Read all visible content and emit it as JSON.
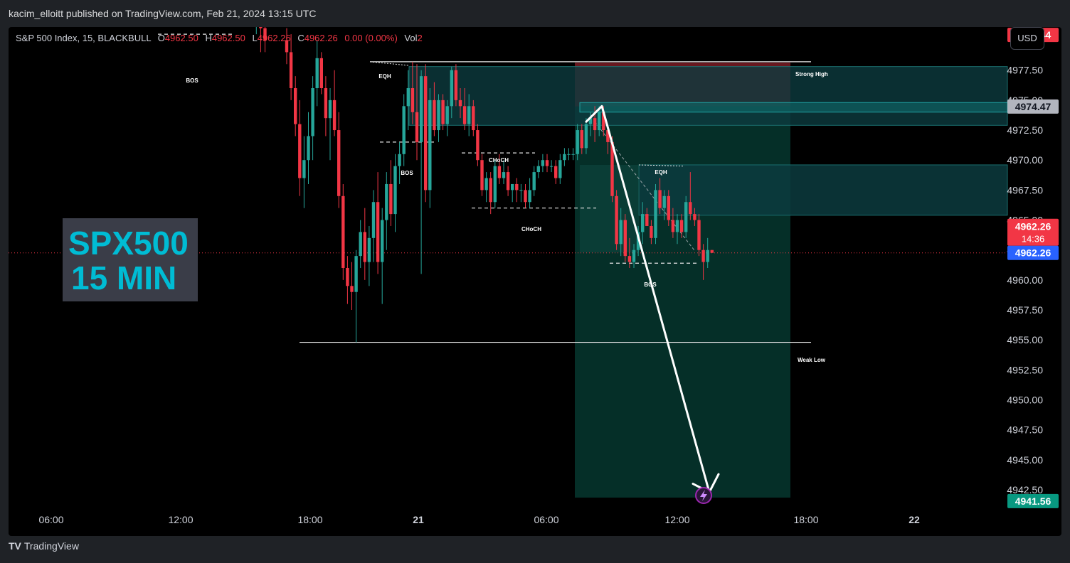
{
  "header": {
    "published": "kacim_elloitt published on TradingView.com, Feb 21, 2024 13:15 UTC"
  },
  "legend": {
    "symbol": "S&P 500 Index, 15, BLACKBULL",
    "o_label": "O",
    "o": "4962.50",
    "h_label": "H",
    "h": "4962.50",
    "l_label": "L",
    "l": "4962.26",
    "c_label": "C",
    "c": "4962.26",
    "change": "0.00 (0.00%)",
    "vol_label": "Vol",
    "vol": "2"
  },
  "currency_button": "USD",
  "watermark": {
    "line1": "SPX500",
    "line2": "15 MIN"
  },
  "footer": {
    "brand": "TradingView",
    "logo": "TV"
  },
  "colors": {
    "up": "#26a69a",
    "down": "#f23645",
    "stop_zone": "#7a1c25",
    "target_zone": "#06342c",
    "supply_zone": "#0c3b3e"
  },
  "chart_data": {
    "type": "candlestick",
    "title": "",
    "ylim": [
      4940.9,
      4981.1
    ],
    "y_ticks": [
      "4977.50",
      "4975.00",
      "4972.50",
      "4970.00",
      "4967.50",
      "4965.00",
      "4962.50",
      "4960.00",
      "4957.50",
      "4955.00",
      "4952.50",
      "4950.00",
      "4947.50",
      "4945.00",
      "4942.50"
    ],
    "x_ticks": [
      "06:00",
      "12:00",
      "18:00",
      "21",
      "06:00",
      "12:00",
      "18:00",
      "22"
    ],
    "price_labels": {
      "stop": "4980.44",
      "entry": "4974.47",
      "last": "4962.26",
      "countdown": "14:36",
      "bid": "4962.26",
      "target": "4941.56"
    },
    "levels": [
      {
        "label": "Strong High",
        "price": 4978.2
      },
      {
        "label": "Weak Low",
        "price": 4954.8
      }
    ],
    "annotations": [
      "BOS",
      "EQH",
      "BOS",
      "CHoCH",
      "CHoCH",
      "EQH",
      "BOS"
    ],
    "projection": {
      "from": 4974.5,
      "to": 4941.6
    },
    "candles": [
      {
        "t": -7,
        "o": 4983.0,
        "h": 4986.0,
        "l": 4980.5,
        "c": 4983.5
      },
      {
        "t": -6,
        "o": 4983.5,
        "h": 4985.0,
        "l": 4979.0,
        "c": 4981.0
      },
      {
        "t": -5,
        "o": 4981.0,
        "h": 4983.0,
        "l": 4979.0,
        "c": 4980.0
      },
      {
        "t": 0,
        "o": 4980.0,
        "h": 4981.0,
        "l": 4978.0,
        "c": 4979.0
      },
      {
        "t": 1,
        "o": 4979.0,
        "h": 4980.5,
        "l": 4975.0,
        "c": 4976.0
      },
      {
        "t": 2,
        "o": 4976.0,
        "h": 4977.0,
        "l": 4972.0,
        "c": 4973.0
      },
      {
        "t": 3,
        "o": 4973.0,
        "h": 4975.0,
        "l": 4967.0,
        "c": 4968.5
      },
      {
        "t": 4,
        "o": 4968.5,
        "h": 4972.0,
        "l": 4966.0,
        "c": 4970.0
      },
      {
        "t": 5,
        "o": 4970.0,
        "h": 4974.0,
        "l": 4968.0,
        "c": 4972.0
      },
      {
        "t": 6,
        "o": 4972.0,
        "h": 4977.0,
        "l": 4970.0,
        "c": 4976.0
      },
      {
        "t": 7,
        "o": 4976.0,
        "h": 4980.0,
        "l": 4974.5,
        "c": 4978.5
      },
      {
        "t": 8,
        "o": 4978.5,
        "h": 4979.0,
        "l": 4975.5,
        "c": 4976.0
      },
      {
        "t": 9,
        "o": 4976.0,
        "h": 4977.0,
        "l": 4972.0,
        "c": 4973.5
      },
      {
        "t": 10,
        "o": 4973.5,
        "h": 4976.0,
        "l": 4970.0,
        "c": 4975.0
      },
      {
        "t": 11,
        "o": 4975.0,
        "h": 4977.5,
        "l": 4972.0,
        "c": 4972.5
      },
      {
        "t": 12,
        "o": 4972.5,
        "h": 4974.0,
        "l": 4966.0,
        "c": 4967.0
      },
      {
        "t": 13,
        "o": 4967.0,
        "h": 4968.0,
        "l": 4960.0,
        "c": 4961.0
      },
      {
        "t": 14,
        "o": 4961.0,
        "h": 4962.0,
        "l": 4958.0,
        "c": 4959.5
      },
      {
        "t": 15,
        "o": 4959.5,
        "h": 4961.5,
        "l": 4957.5,
        "c": 4959.0
      },
      {
        "t": 16,
        "o": 4959.0,
        "h": 4962.5,
        "l": 4954.8,
        "c": 4962.0
      },
      {
        "t": 17,
        "o": 4962.0,
        "h": 4965.0,
        "l": 4961.0,
        "c": 4964.0
      },
      {
        "t": 18,
        "o": 4964.0,
        "h": 4966.0,
        "l": 4960.0,
        "c": 4961.5
      },
      {
        "t": 19,
        "o": 4961.5,
        "h": 4964.5,
        "l": 4959.5,
        "c": 4963.5
      },
      {
        "t": 20,
        "o": 4963.5,
        "h": 4967.5,
        "l": 4961.5,
        "c": 4966.5
      },
      {
        "t": 21,
        "o": 4966.5,
        "h": 4969.0,
        "l": 4960.5,
        "c": 4961.5
      },
      {
        "t": 22,
        "o": 4961.5,
        "h": 4966.0,
        "l": 4958.0,
        "c": 4965.0
      },
      {
        "t": 23,
        "o": 4965.0,
        "h": 4969.0,
        "l": 4962.5,
        "c": 4968.0
      },
      {
        "t": 24,
        "o": 4968.0,
        "h": 4970.0,
        "l": 4964.5,
        "c": 4965.5
      },
      {
        "t": 25,
        "o": 4965.5,
        "h": 4970.5,
        "l": 4964.0,
        "c": 4969.5
      },
      {
        "t": 26,
        "o": 4969.5,
        "h": 4971.5,
        "l": 4968.0,
        "c": 4970.5
      },
      {
        "t": 27,
        "o": 4970.5,
        "h": 4975.5,
        "l": 4969.5,
        "c": 4974.5
      },
      {
        "t": 28,
        "o": 4974.5,
        "h": 4977.5,
        "l": 4972.5,
        "c": 4976.0
      },
      {
        "t": 29,
        "o": 4976.0,
        "h": 4978.2,
        "l": 4973.0,
        "c": 4974.0
      },
      {
        "t": 30,
        "o": 4974.0,
        "h": 4978.0,
        "l": 4970.0,
        "c": 4971.5
      },
      {
        "t": 31,
        "o": 4971.5,
        "h": 4977.5,
        "l": 4960.5,
        "c": 4977.0
      },
      {
        "t": 32,
        "o": 4977.0,
        "h": 4978.0,
        "l": 4966.5,
        "c": 4967.5
      },
      {
        "t": 33,
        "o": 4967.5,
        "h": 4976.0,
        "l": 4966.0,
        "c": 4975.0
      },
      {
        "t": 34,
        "o": 4975.0,
        "h": 4976.5,
        "l": 4972.0,
        "c": 4972.5
      },
      {
        "t": 35,
        "o": 4972.5,
        "h": 4975.5,
        "l": 4971.5,
        "c": 4975.0
      },
      {
        "t": 36,
        "o": 4975.0,
        "h": 4975.5,
        "l": 4972.5,
        "c": 4973.0
      },
      {
        "t": 37,
        "o": 4973.0,
        "h": 4975.0,
        "l": 4972.0,
        "c": 4974.5
      },
      {
        "t": 38,
        "o": 4974.5,
        "h": 4977.8,
        "l": 4973.5,
        "c": 4977.5
      },
      {
        "t": 39,
        "o": 4977.5,
        "h": 4978.0,
        "l": 4974.5,
        "c": 4975.0
      },
      {
        "t": 40,
        "o": 4975.0,
        "h": 4976.0,
        "l": 4973.5,
        "c": 4974.5
      },
      {
        "t": 41,
        "o": 4974.5,
        "h": 4976.0,
        "l": 4972.5,
        "c": 4973.0
      },
      {
        "t": 42,
        "o": 4973.0,
        "h": 4975.5,
        "l": 4972.0,
        "c": 4974.5
      },
      {
        "t": 43,
        "o": 4974.5,
        "h": 4975.0,
        "l": 4972.0,
        "c": 4972.5
      },
      {
        "t": 44,
        "o": 4972.5,
        "h": 4973.0,
        "l": 4969.5,
        "c": 4970.0
      },
      {
        "t": 45,
        "o": 4970.0,
        "h": 4970.5,
        "l": 4967.0,
        "c": 4967.5
      },
      {
        "t": 46,
        "o": 4967.5,
        "h": 4969.0,
        "l": 4966.5,
        "c": 4968.5
      },
      {
        "t": 47,
        "o": 4968.5,
        "h": 4969.0,
        "l": 4965.5,
        "c": 4966.5
      },
      {
        "t": 48,
        "o": 4966.5,
        "h": 4970.0,
        "l": 4966.0,
        "c": 4969.5
      },
      {
        "t": 49,
        "o": 4969.5,
        "h": 4970.5,
        "l": 4968.0,
        "c": 4968.5
      },
      {
        "t": 50,
        "o": 4968.5,
        "h": 4970.0,
        "l": 4968.0,
        "c": 4969.0
      },
      {
        "t": 51,
        "o": 4969.0,
        "h": 4969.5,
        "l": 4967.0,
        "c": 4967.5
      },
      {
        "t": 52,
        "o": 4967.5,
        "h": 4968.0,
        "l": 4966.5,
        "c": 4968.0
      },
      {
        "t": 53,
        "o": 4968.0,
        "h": 4968.5,
        "l": 4966.5,
        "c": 4967.5
      },
      {
        "t": 54,
        "o": 4967.5,
        "h": 4968.0,
        "l": 4966.5,
        "c": 4967.5
      },
      {
        "t": 55,
        "o": 4967.5,
        "h": 4968.0,
        "l": 4966.0,
        "c": 4966.5
      },
      {
        "t": 56,
        "o": 4966.5,
        "h": 4968.5,
        "l": 4966.0,
        "c": 4967.5
      },
      {
        "t": 57,
        "o": 4967.5,
        "h": 4969.5,
        "l": 4967.0,
        "c": 4969.0
      },
      {
        "t": 58,
        "o": 4969.0,
        "h": 4970.0,
        "l": 4968.5,
        "c": 4969.5
      },
      {
        "t": 59,
        "o": 4969.5,
        "h": 4970.5,
        "l": 4969.0,
        "c": 4970.0
      },
      {
        "t": 60,
        "o": 4970.0,
        "h": 4970.5,
        "l": 4969.0,
        "c": 4969.5
      },
      {
        "t": 61,
        "o": 4969.5,
        "h": 4970.0,
        "l": 4969.0,
        "c": 4969.5
      },
      {
        "t": 62,
        "o": 4969.5,
        "h": 4970.0,
        "l": 4968.0,
        "c": 4968.5
      },
      {
        "t": 63,
        "o": 4968.5,
        "h": 4970.5,
        "l": 4968.0,
        "c": 4970.0
      },
      {
        "t": 64,
        "o": 4970.0,
        "h": 4971.0,
        "l": 4969.5,
        "c": 4970.5
      },
      {
        "t": 65,
        "o": 4970.5,
        "h": 4971.0,
        "l": 4970.0,
        "c": 4970.5
      },
      {
        "t": 66,
        "o": 4970.5,
        "h": 4971.0,
        "l": 4970.0,
        "c": 4970.5
      },
      {
        "t": 67,
        "o": 4970.5,
        "h": 4973.0,
        "l": 4970.0,
        "c": 4972.5
      },
      {
        "t": 68,
        "o": 4972.5,
        "h": 4973.0,
        "l": 4970.5,
        "c": 4971.0
      },
      {
        "t": 69,
        "o": 4971.0,
        "h": 4973.5,
        "l": 4970.5,
        "c": 4973.0
      },
      {
        "t": 70,
        "o": 4973.0,
        "h": 4974.0,
        "l": 4972.0,
        "c": 4973.5
      },
      {
        "t": 71,
        "o": 4973.5,
        "h": 4974.5,
        "l": 4971.5,
        "c": 4972.5
      },
      {
        "t": 72,
        "o": 4972.5,
        "h": 4974.5,
        "l": 4972.0,
        "c": 4974.0
      },
      {
        "t": 73,
        "o": 4974.0,
        "h": 4974.5,
        "l": 4972.0,
        "c": 4972.5
      },
      {
        "t": 74,
        "o": 4972.5,
        "h": 4973.0,
        "l": 4970.5,
        "c": 4971.5
      },
      {
        "t": 75,
        "o": 4971.5,
        "h": 4972.0,
        "l": 4966.5,
        "c": 4967.0
      },
      {
        "t": 76,
        "o": 4967.0,
        "h": 4967.5,
        "l": 4962.5,
        "c": 4963.0
      },
      {
        "t": 77,
        "o": 4963.0,
        "h": 4966.0,
        "l": 4962.0,
        "c": 4965.0
      },
      {
        "t": 78,
        "o": 4965.0,
        "h": 4965.5,
        "l": 4961.5,
        "c": 4962.0
      },
      {
        "t": 79,
        "o": 4962.0,
        "h": 4963.5,
        "l": 4961.0,
        "c": 4961.5
      },
      {
        "t": 80,
        "o": 4961.5,
        "h": 4963.0,
        "l": 4961.0,
        "c": 4962.5
      },
      {
        "t": 81,
        "o": 4962.5,
        "h": 4964.5,
        "l": 4962.0,
        "c": 4964.0
      },
      {
        "t": 82,
        "o": 4964.0,
        "h": 4966.5,
        "l": 4963.0,
        "c": 4965.5
      },
      {
        "t": 83,
        "o": 4965.5,
        "h": 4966.0,
        "l": 4964.5,
        "c": 4964.5
      },
      {
        "t": 84,
        "o": 4964.5,
        "h": 4965.0,
        "l": 4963.0,
        "c": 4963.5
      },
      {
        "t": 85,
        "o": 4963.5,
        "h": 4968.0,
        "l": 4963.0,
        "c": 4967.5
      },
      {
        "t": 86,
        "o": 4967.5,
        "h": 4968.5,
        "l": 4965.5,
        "c": 4966.0
      },
      {
        "t": 87,
        "o": 4966.0,
        "h": 4967.5,
        "l": 4965.0,
        "c": 4967.0
      },
      {
        "t": 88,
        "o": 4967.0,
        "h": 4967.5,
        "l": 4964.5,
        "c": 4965.0
      },
      {
        "t": 89,
        "o": 4965.0,
        "h": 4966.0,
        "l": 4963.5,
        "c": 4964.0
      },
      {
        "t": 90,
        "o": 4964.0,
        "h": 4965.5,
        "l": 4963.0,
        "c": 4965.0
      },
      {
        "t": 91,
        "o": 4965.0,
        "h": 4965.5,
        "l": 4963.5,
        "c": 4964.0
      },
      {
        "t": 92,
        "o": 4964.0,
        "h": 4967.0,
        "l": 4963.5,
        "c": 4966.5
      },
      {
        "t": 93,
        "o": 4966.5,
        "h": 4969.0,
        "l": 4965.0,
        "c": 4965.5
      },
      {
        "t": 94,
        "o": 4965.5,
        "h": 4966.0,
        "l": 4964.5,
        "c": 4965.0
      },
      {
        "t": 95,
        "o": 4965.0,
        "h": 4965.5,
        "l": 4962.0,
        "c": 4962.5
      },
      {
        "t": 96,
        "o": 4962.5,
        "h": 4963.0,
        "l": 4960.0,
        "c": 4961.5
      },
      {
        "t": 97,
        "o": 4961.5,
        "h": 4963.5,
        "l": 4961.0,
        "c": 4962.5
      },
      {
        "t": 98,
        "o": 4962.5,
        "h": 4962.5,
        "l": 4962.26,
        "c": 4962.26
      }
    ]
  }
}
